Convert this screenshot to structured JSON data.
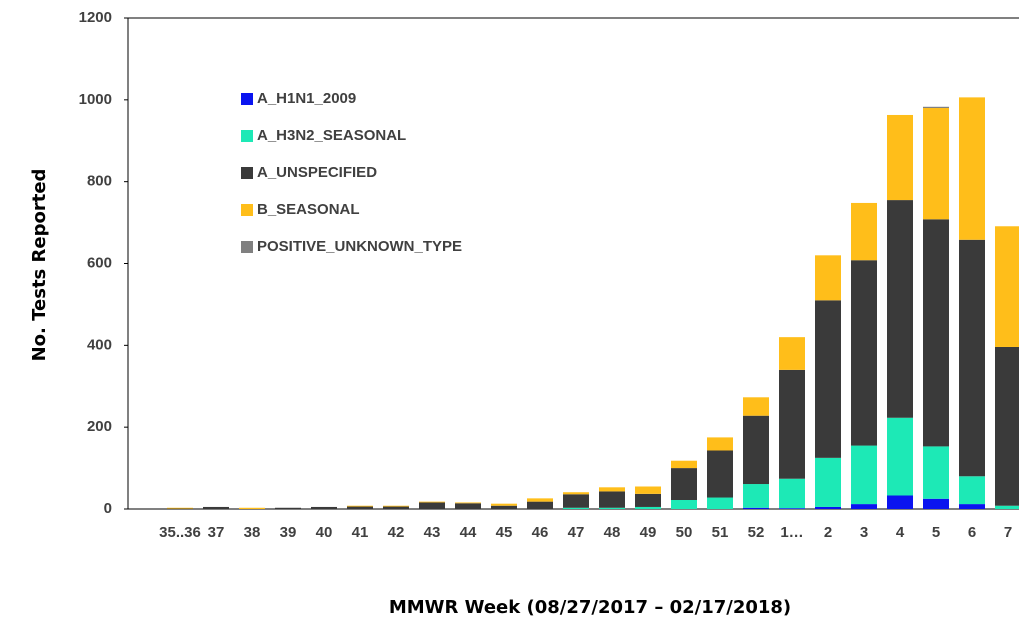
{
  "chart_data": {
    "type": "stacked_bar",
    "x_label": "MMWR Week (08/27/2017 – 02/17/2018)",
    "y_label": "No. Tests Reported",
    "categories": [
      "35..36",
      "37",
      "38",
      "39",
      "40",
      "41",
      "42",
      "43",
      "44",
      "45",
      "46",
      "47",
      "48",
      "49",
      "50",
      "51",
      "52",
      "1…",
      "2",
      "3",
      "4",
      "5",
      "6",
      "7"
    ],
    "series": [
      {
        "name": "A_H1N1_2009",
        "color": "#0a14f0",
        "values": [
          0,
          0,
          0,
          0,
          0,
          0,
          0,
          0,
          0,
          0,
          0,
          0,
          0,
          0,
          0,
          0,
          3,
          2,
          5,
          12,
          33,
          25,
          12,
          0
        ]
      },
      {
        "name": "A_H3N2_SEASONAL",
        "color": "#1de9b6",
        "values": [
          0,
          0,
          0,
          0,
          0,
          0,
          0,
          0,
          0,
          0,
          0,
          3,
          3,
          5,
          22,
          28,
          58,
          72,
          120,
          143,
          190,
          128,
          68,
          8
        ]
      },
      {
        "name": "A_UNSPECIFIED",
        "color": "#3a3a3a",
        "values": [
          1,
          5,
          0,
          3,
          5,
          6,
          6,
          16,
          14,
          8,
          18,
          33,
          40,
          32,
          78,
          115,
          167,
          266,
          385,
          453,
          532,
          555,
          578,
          388
        ]
      },
      {
        "name": "B_SEASONAL",
        "color": "#ffbe1a",
        "values": [
          2,
          0,
          3,
          0,
          0,
          2,
          2,
          2,
          2,
          5,
          8,
          5,
          10,
          18,
          18,
          32,
          45,
          80,
          110,
          140,
          208,
          272,
          348,
          295
        ]
      },
      {
        "name": "POSITIVE_UNKNOWN_TYPE",
        "color": "#808080",
        "values": [
          0,
          0,
          0,
          0,
          0,
          0,
          0,
          0,
          0,
          0,
          0,
          0,
          0,
          0,
          0,
          0,
          0,
          0,
          0,
          0,
          0,
          3,
          0,
          0
        ]
      }
    ],
    "ylim": [
      0,
      1200
    ],
    "yticks": [
      0,
      200,
      400,
      600,
      800,
      1000,
      1200
    ],
    "grid": false,
    "legend": "top-left"
  }
}
